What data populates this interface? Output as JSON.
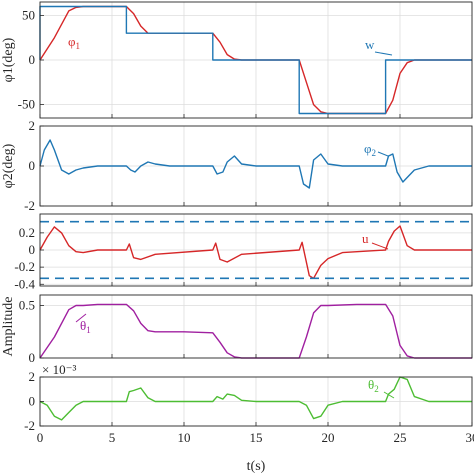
{
  "chart_data": [
    {
      "type": "line",
      "ylabel": "φ1(deg)",
      "ylim": [
        -65,
        65
      ],
      "yticks": [
        -50,
        0,
        50
      ],
      "xlim": [
        0,
        30
      ],
      "grid": true,
      "series": [
        {
          "name": "φ1",
          "color": "#d62728",
          "x": [
            0,
            1,
            2,
            2.5,
            3,
            4,
            5,
            6,
            6.5,
            7,
            7.5,
            8,
            10,
            12,
            12.5,
            13,
            13.5,
            14,
            16,
            18,
            18.5,
            19,
            19.5,
            20,
            22,
            24,
            24.5,
            25,
            25.5,
            26,
            28,
            30
          ],
          "y": [
            0,
            25,
            55,
            59,
            60,
            60,
            60,
            60,
            52,
            38,
            30,
            30,
            30,
            30,
            20,
            6,
            1,
            0,
            0,
            0,
            -25,
            -50,
            -58,
            -60,
            -60,
            -60,
            -45,
            -15,
            -3,
            0,
            0,
            0
          ]
        },
        {
          "name": "w",
          "color": "#1f77b4",
          "x": [
            0,
            0,
            6,
            6,
            12,
            12,
            18,
            18,
            24,
            24,
            30
          ],
          "y": [
            0,
            60,
            60,
            30,
            30,
            0,
            0,
            -60,
            -60,
            0,
            0
          ]
        }
      ]
    },
    {
      "type": "line",
      "ylabel": "φ2(deg)",
      "ylim": [
        -2,
        2
      ],
      "yticks": [
        -2,
        0,
        2
      ],
      "xlim": [
        0,
        30
      ],
      "grid": true,
      "series": [
        {
          "name": "φ2",
          "color": "#1f77b4",
          "x": [
            0,
            0.3,
            0.7,
            1,
            1.5,
            2,
            2.5,
            3,
            4,
            6,
            6.3,
            6.6,
            7,
            7.5,
            8,
            9,
            12,
            12.3,
            12.7,
            13,
            13.5,
            14,
            15,
            18,
            18.3,
            18.7,
            19,
            19.5,
            20,
            21,
            24,
            24.2,
            24.5,
            24.8,
            25.2,
            25.6,
            26,
            27,
            30
          ],
          "y": [
            0,
            0.8,
            1.3,
            0.8,
            -0.2,
            -0.4,
            -0.2,
            -0.1,
            0,
            0,
            -0.2,
            -0.3,
            0,
            0.2,
            0.1,
            0,
            0,
            -0.4,
            -0.3,
            0.2,
            0.5,
            0.1,
            0,
            0,
            -0.9,
            -1.1,
            0.3,
            0.6,
            0.1,
            0,
            0,
            0.5,
            0.6,
            -0.3,
            -0.8,
            -0.5,
            -0.2,
            0,
            0
          ]
        }
      ]
    },
    {
      "type": "line",
      "ylabel": "",
      "ylim": [
        -0.42,
        0.42
      ],
      "yticks": [
        -0.4,
        -0.2,
        0,
        0.2
      ],
      "xlim": [
        0,
        30
      ],
      "grid": true,
      "series": [
        {
          "name": "u",
          "color": "#d62728",
          "x": [
            0,
            0.5,
            1,
            1.5,
            2,
            2.5,
            3,
            4,
            6,
            6.2,
            6.5,
            7,
            8,
            12,
            12.2,
            12.5,
            13,
            14,
            18,
            18.2,
            18.7,
            19,
            19.5,
            20,
            21,
            24,
            24.2,
            24.6,
            25,
            25.5,
            26,
            27,
            30
          ],
          "y": [
            0,
            0.15,
            0.27,
            0.2,
            0.05,
            -0.02,
            -0.03,
            0,
            0,
            0.07,
            -0.09,
            -0.11,
            -0.05,
            0,
            0.08,
            -0.11,
            -0.14,
            -0.05,
            0,
            0.09,
            -0.3,
            -0.33,
            -0.18,
            -0.1,
            -0.03,
            0,
            0.1,
            0.22,
            0.28,
            0.05,
            0.0,
            0,
            0
          ]
        },
        {
          "name": "upper bound",
          "color": "#1f77b4",
          "dashed": true,
          "x": [
            0,
            30
          ],
          "y": [
            0.33,
            0.33
          ]
        },
        {
          "name": "lower bound",
          "color": "#1f77b4",
          "dashed": true,
          "x": [
            0,
            30
          ],
          "y": [
            -0.33,
            -0.33
          ]
        }
      ]
    },
    {
      "type": "line",
      "ylabel": "Amplitude",
      "ylim": [
        0,
        0.6
      ],
      "yticks": [
        0,
        0.5
      ],
      "xlim": [
        0,
        30
      ],
      "grid": true,
      "series": [
        {
          "name": "θ1",
          "color": "#a020a0",
          "x": [
            0,
            1,
            2,
            2.5,
            3,
            4,
            6,
            6.5,
            7,
            7.5,
            8,
            10,
            12,
            12.5,
            13,
            13.5,
            14,
            16,
            18,
            18.5,
            19,
            19.5,
            20,
            22,
            24,
            24.5,
            25,
            25.5,
            26,
            28,
            30
          ],
          "y": [
            0,
            0.2,
            0.46,
            0.5,
            0.5,
            0.51,
            0.51,
            0.45,
            0.33,
            0.26,
            0.25,
            0.25,
            0.24,
            0.15,
            0.05,
            0.01,
            0,
            0,
            0,
            0.2,
            0.43,
            0.5,
            0.5,
            0.51,
            0.51,
            0.4,
            0.12,
            0.02,
            0,
            0,
            0
          ]
        }
      ]
    },
    {
      "type": "line",
      "ylabel": "",
      "yexponent": "× 10⁻³",
      "ylim": [
        -2,
        2
      ],
      "yticks": [
        -2,
        0,
        2
      ],
      "xlabel": "t(s)",
      "xticks": [
        0,
        5,
        10,
        15,
        20,
        25,
        30
      ],
      "xlim": [
        0,
        30
      ],
      "grid": true,
      "series": [
        {
          "name": "θ2",
          "color": "#4dbd33",
          "x": [
            0,
            0.5,
            1,
            1.5,
            2,
            2.5,
            3,
            4,
            6,
            6.2,
            6.5,
            7,
            7.5,
            8,
            9,
            12,
            12.3,
            12.7,
            13,
            13.5,
            14,
            15,
            18,
            18.5,
            19,
            19.5,
            20,
            21,
            24,
            24.2,
            24.6,
            25,
            25.5,
            26,
            27,
            30
          ],
          "y": [
            0,
            -0.3,
            -1.2,
            -1.5,
            -0.9,
            -0.3,
            0,
            0,
            0,
            0.8,
            0.9,
            1.1,
            0.3,
            0,
            0,
            0,
            0.4,
            0.2,
            0.6,
            0.5,
            0.1,
            0,
            0,
            -0.3,
            -1.4,
            -1.2,
            -0.3,
            0,
            0,
            0.6,
            1.0,
            2.0,
            1.8,
            0.4,
            0,
            0
          ]
        }
      ]
    }
  ],
  "annotations": {
    "phi1": "φ",
    "phi1_sub": "1",
    "w": "w",
    "phi2": "φ",
    "phi2_sub": "2",
    "u": "u",
    "theta1": "θ",
    "theta1_sub": "1",
    "theta2": "θ",
    "theta2_sub": "2"
  }
}
